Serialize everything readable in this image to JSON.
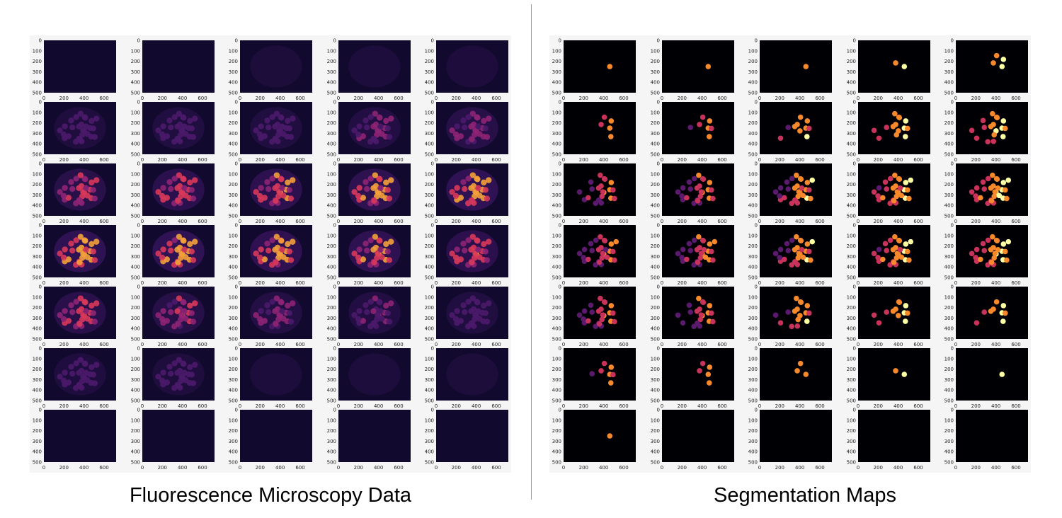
{
  "figure": {
    "left_caption": "Fluorescence Microscopy Data",
    "right_caption": "Segmentation Maps"
  },
  "axes": {
    "y_ticks": [
      "0",
      "100",
      "200",
      "300",
      "400",
      "500"
    ],
    "x_ticks": [
      "0",
      "200",
      "400",
      "600"
    ]
  },
  "grid": {
    "rows": 7,
    "cols": 5
  },
  "colormap": "inferno",
  "colors": {
    "background": "#ffffff",
    "panel": "#f5f5f5",
    "image_dark": "#000004",
    "fluor_base": "#120a2e",
    "seg_dark": "#5b1a6e",
    "seg_mid": "#c9325a",
    "seg_bright": "#f7892b",
    "seg_max": "#fcffa4"
  }
}
